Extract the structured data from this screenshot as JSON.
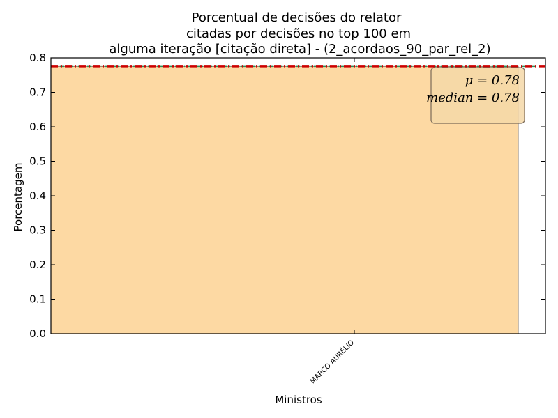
{
  "chart_data": {
    "type": "bar",
    "title_lines": [
      "Porcentual de decisões do relator",
      "citadas por decisões no top 100 em",
      "alguma iteração [citação direta] - (2_acordaos_90_par_rel_2)"
    ],
    "xlabel": "Ministros",
    "ylabel": "Porcentagem",
    "categories": [
      "MARCO AURÉLIO"
    ],
    "values": [
      0.775
    ],
    "ylim": [
      0,
      0.8
    ],
    "yticks": [
      "0.0",
      "0.1",
      "0.2",
      "0.3",
      "0.4",
      "0.5",
      "0.6",
      "0.7",
      "0.8"
    ],
    "mean_line": 0.775,
    "median_line": 0.775,
    "stats": {
      "mean_text": "μ = 0.78",
      "median_text": "median = 0.78"
    },
    "grid": false,
    "stats_box_placement": "top-right",
    "colors": {
      "bar_fill": "#fdd9a3",
      "bar_edge": "#8b7a66",
      "mean_line": "#cc0000",
      "median_line": "#2e8b57",
      "box_fill": "#f5d8a8",
      "box_edge": "#7a6a58"
    }
  }
}
